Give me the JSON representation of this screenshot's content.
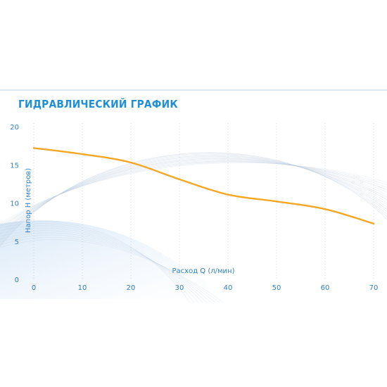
{
  "chart_data": {
    "type": "line",
    "title": "ГИДРАВЛИЧЕСКИЙ ГРАФИК",
    "xlabel": "Расход Q (л/мин)",
    "ylabel": "Напор H (метров)",
    "xlim": [
      0,
      70
    ],
    "ylim": [
      0,
      20
    ],
    "x_ticks": [
      0,
      10,
      20,
      30,
      40,
      50,
      60,
      70
    ],
    "y_ticks": [
      0,
      5,
      10,
      15,
      20
    ],
    "grid": "vertical-dotted",
    "series": [
      {
        "color": "#f5a623",
        "x": [
          0,
          10,
          20,
          30,
          40,
          50,
          60,
          70
        ],
        "y": [
          17.2,
          16.4,
          15.3,
          13.1,
          11.1,
          10.2,
          9.2,
          7.3
        ]
      }
    ]
  },
  "colors": {
    "title": "#1f8fd6",
    "axis_text": "#2f7fbf",
    "curve": "#f5a623",
    "decor_lines": "#b9c9dc"
  }
}
